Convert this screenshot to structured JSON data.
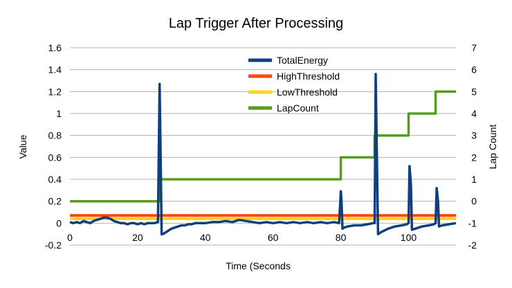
{
  "chart_data": {
    "type": "line",
    "title": "Lap Trigger After Processing",
    "xlabel": "Time (Seconds",
    "ylabel": "Value",
    "y2label": "Lap Count",
    "xlim": [
      0,
      114
    ],
    "ylim": [
      -0.2,
      1.6
    ],
    "y2lim": [
      -2,
      7
    ],
    "x_ticks": [
      "0",
      "20",
      "40",
      "60",
      "80",
      "100"
    ],
    "y_ticks": [
      "-0.2",
      "0",
      "0.2",
      "0.4",
      "0.6",
      "0.8",
      "1",
      "1.2",
      "1.4",
      "1.6"
    ],
    "y2_ticks": [
      "-2",
      "-1",
      "0",
      "1",
      "2",
      "3",
      "4",
      "5",
      "6",
      "7"
    ],
    "grid": "horizontal",
    "legend_position": "top-center",
    "series": [
      {
        "name": "TotalEnergy",
        "color": "#0f3f7f",
        "axis": "left",
        "x": [
          0,
          1,
          2,
          3,
          4,
          5,
          6,
          7,
          8,
          9,
          10,
          11,
          12,
          13,
          14,
          15,
          16,
          17,
          18,
          19,
          20,
          21,
          22,
          23,
          24,
          25,
          26,
          26.5,
          26.8,
          27.1,
          27.4,
          28,
          29,
          30,
          31,
          32,
          33,
          34,
          35,
          36,
          37,
          38,
          39,
          40,
          42,
          44,
          46,
          48,
          50,
          52,
          54,
          56,
          58,
          60,
          62,
          64,
          66,
          68,
          70,
          72,
          74,
          76,
          78,
          79.5,
          80,
          80.2,
          80.5,
          81,
          82,
          84,
          86,
          88,
          89.5,
          90,
          90.3,
          90.6,
          91,
          92,
          94,
          96,
          98,
          99.5,
          100,
          100.3,
          100.7,
          101,
          102,
          104,
          106,
          107.5,
          108,
          108.3,
          108.7,
          109,
          110,
          112,
          114
        ],
        "y": [
          0.01,
          0.0,
          0.01,
          0.0,
          0.02,
          0.01,
          0.0,
          0.02,
          0.03,
          0.04,
          0.05,
          0.05,
          0.04,
          0.02,
          0.01,
          0.0,
          0.0,
          -0.01,
          0.0,
          0.0,
          -0.01,
          0.0,
          -0.01,
          0.0,
          0.0,
          0.0,
          0.01,
          1.27,
          0.6,
          -0.1,
          -0.1,
          -0.09,
          -0.07,
          -0.05,
          -0.04,
          -0.03,
          -0.02,
          -0.02,
          -0.01,
          -0.01,
          0.0,
          0.0,
          0.0,
          0.0,
          0.01,
          0.01,
          0.02,
          0.01,
          0.03,
          0.02,
          0.01,
          0.0,
          0.01,
          0.0,
          0.01,
          0.0,
          0.01,
          0.0,
          0.01,
          0.0,
          0.01,
          0.0,
          0.01,
          0.0,
          0.29,
          0.2,
          -0.05,
          -0.04,
          -0.03,
          -0.02,
          -0.02,
          -0.01,
          0.0,
          0.0,
          1.36,
          0.7,
          -0.1,
          -0.08,
          -0.05,
          -0.03,
          -0.02,
          -0.01,
          0.0,
          0.52,
          0.35,
          -0.06,
          -0.05,
          -0.03,
          -0.02,
          -0.01,
          0.0,
          0.32,
          0.2,
          -0.03,
          -0.02,
          -0.01,
          0.0
        ]
      },
      {
        "name": "HighThreshold",
        "color": "#ff4500",
        "axis": "left",
        "x": [
          0,
          114
        ],
        "y": [
          0.07,
          0.07
        ]
      },
      {
        "name": "LowThreshold",
        "color": "#ffd320",
        "axis": "left",
        "x": [
          0,
          114
        ],
        "y": [
          0.04,
          0.04
        ]
      },
      {
        "name": "LapCount",
        "color": "#579d1c",
        "axis": "right",
        "x": [
          0,
          26.5,
          26.5,
          80,
          80,
          90,
          90,
          100,
          100,
          108,
          108,
          114
        ],
        "y": [
          0,
          0,
          1,
          1,
          2,
          2,
          3,
          3,
          4,
          4,
          5,
          5
        ]
      }
    ]
  }
}
